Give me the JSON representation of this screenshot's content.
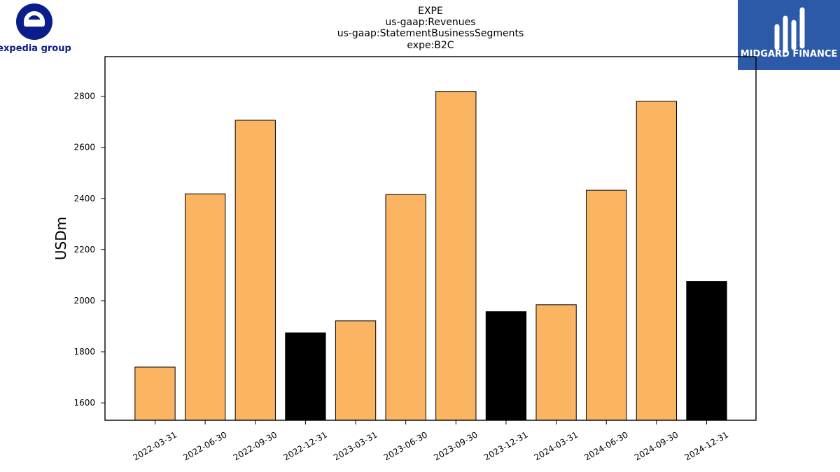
{
  "chart_data": {
    "type": "bar",
    "title_lines": [
      "EXPE",
      "us-gaap:Revenues",
      "us-gaap:StatementBusinessSegments",
      "expe:B2C"
    ],
    "ylabel": "USDm",
    "xlabel": "",
    "categories": [
      "2022-03-31",
      "2022-06-30",
      "2022-09-30",
      "2022-12-31",
      "2023-03-31",
      "2023-06-30",
      "2023-09-30",
      "2023-12-31",
      "2024-03-31",
      "2024-06-30",
      "2024-09-30",
      "2024-12-31"
    ],
    "values": [
      1740,
      2418,
      2706,
      1874,
      1921,
      2415,
      2819,
      1957,
      1984,
      2432,
      2780,
      2075
    ],
    "highlighted": [
      false,
      false,
      false,
      true,
      false,
      false,
      false,
      true,
      false,
      false,
      false,
      true
    ],
    "ylim": [
      1532,
      2955
    ],
    "yticks": [
      1600,
      1800,
      2000,
      2200,
      2400,
      2600,
      2800
    ],
    "colors": {
      "bar": "#fbb462",
      "highlight": "#000000",
      "edge": "#000000"
    },
    "grid": false
  },
  "logos": {
    "left": {
      "name": "expedia-group-logo",
      "text": "expedia group",
      "color": "#0b1d8b"
    },
    "right": {
      "name": "midgard-finance-logo",
      "text": "MIDGARD FINANCE",
      "background": "#2c5aa8"
    }
  }
}
